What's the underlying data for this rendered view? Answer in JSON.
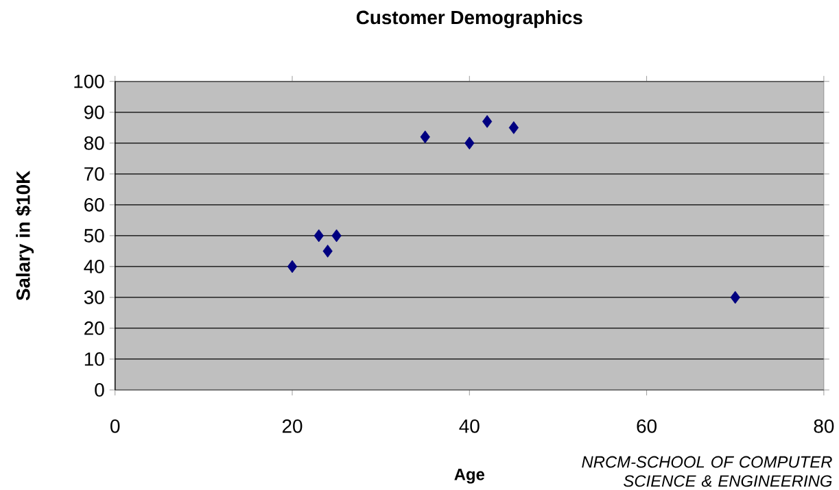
{
  "chart_data": {
    "type": "scatter",
    "title": "Customer  Demographics",
    "xlabel": "Age",
    "ylabel": "Salary in $10K",
    "annotations": [
      "NRCM-SCHOOL OF COMPUTER SCIENCE & ENGINEERING"
    ],
    "x": [
      20,
      23,
      24,
      25,
      35,
      40,
      42,
      45,
      70
    ],
    "values": [
      40,
      50,
      45,
      50,
      82,
      80,
      87,
      85,
      30
    ],
    "color": "#000080",
    "marker": "diamond",
    "grid": "y",
    "xlim": [
      0,
      80
    ],
    "xticks": [
      0,
      20,
      40,
      60,
      80
    ],
    "ylim": [
      0,
      100
    ],
    "yticks": [
      0,
      10,
      20,
      30,
      40,
      50,
      60,
      70,
      80,
      90,
      100
    ]
  }
}
